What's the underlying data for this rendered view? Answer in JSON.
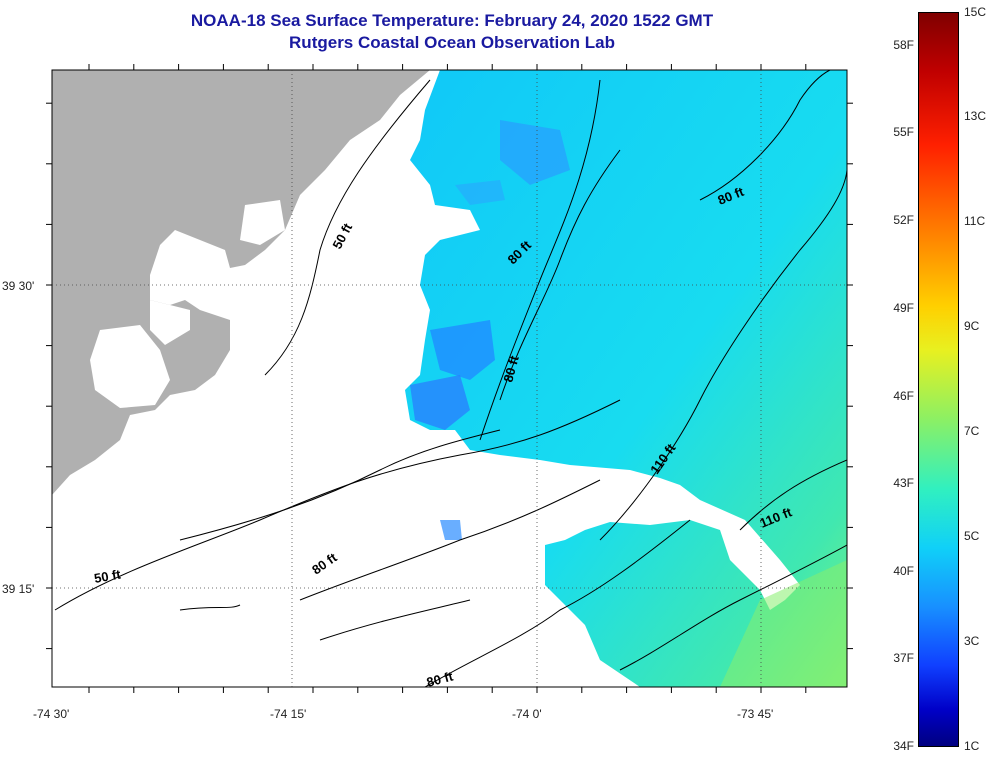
{
  "header": {
    "title": "NOAA-18 Sea Surface Temperature:  February 24, 2020 1522 GMT",
    "subtitle": "Rutgers Coastal Ocean Observation Lab"
  },
  "axes": {
    "x_ticks": [
      "-74 30'",
      "-74 15'",
      "-74 0'",
      "-73 45'"
    ],
    "y_ticks": [
      "39 30'",
      "39 15'"
    ]
  },
  "contour_labels": [
    "50 ft",
    "50 ft",
    "80 ft",
    "80 ft",
    "80 ft",
    "80 ft",
    "80 ft",
    "110 ft",
    "110 ft"
  ],
  "colorbar": {
    "fahrenheit": [
      "58F",
      "55F",
      "52F",
      "49F",
      "46F",
      "43F",
      "40F",
      "37F",
      "34F"
    ],
    "celsius": [
      "15C",
      "13C",
      "11C",
      "9C",
      "7C",
      "5C",
      "3C",
      "1C"
    ]
  },
  "colors": {
    "land": "#b0b0b0",
    "title": "#1a1aa0",
    "sst_cool": "#1e78ff",
    "sst_mid": "#18e0f0",
    "sst_warm": "#7ef07a"
  }
}
